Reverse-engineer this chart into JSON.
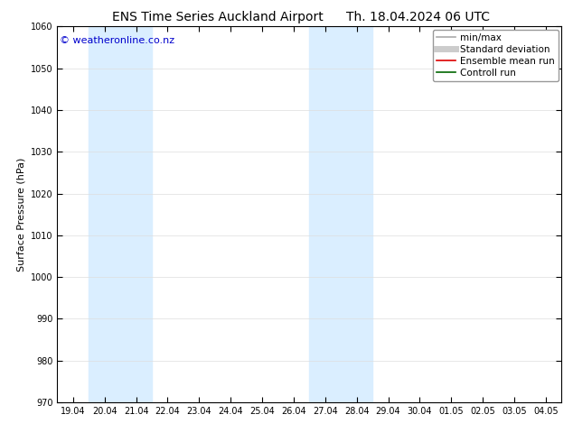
{
  "title_left": "ENS Time Series Auckland Airport",
  "title_right": "Th. 18.04.2024 06 UTC",
  "ylabel": "Surface Pressure (hPa)",
  "ylim": [
    970,
    1060
  ],
  "yticks": [
    970,
    980,
    990,
    1000,
    1010,
    1020,
    1030,
    1040,
    1050,
    1060
  ],
  "xtick_labels": [
    "19.04",
    "20.04",
    "21.04",
    "22.04",
    "23.04",
    "24.04",
    "25.04",
    "26.04",
    "27.04",
    "28.04",
    "29.04",
    "30.04",
    "01.05",
    "02.05",
    "03.05",
    "04.05"
  ],
  "shaded_bands": [
    {
      "xstart": 1,
      "xend": 3,
      "color": "#daeeff"
    },
    {
      "xstart": 8,
      "xend": 10,
      "color": "#daeeff"
    }
  ],
  "copyright_text": "© weatheronline.co.nz",
  "copyright_color": "#0000cc",
  "legend_entries": [
    {
      "label": "min/max",
      "color": "#aaaaaa",
      "lw": 1.2,
      "linestyle": "-"
    },
    {
      "label": "Standard deviation",
      "color": "#cccccc",
      "lw": 5,
      "linestyle": "-"
    },
    {
      "label": "Ensemble mean run",
      "color": "#dd0000",
      "lw": 1.2,
      "linestyle": "-"
    },
    {
      "label": "Controll run",
      "color": "#006600",
      "lw": 1.2,
      "linestyle": "-"
    }
  ],
  "bg_color": "#ffffff",
  "plot_bg_color": "#ffffff",
  "grid_color": "#dddddd",
  "title_fontsize": 10,
  "tick_fontsize": 7,
  "ylabel_fontsize": 8,
  "copyright_fontsize": 8,
  "legend_fontsize": 7.5
}
